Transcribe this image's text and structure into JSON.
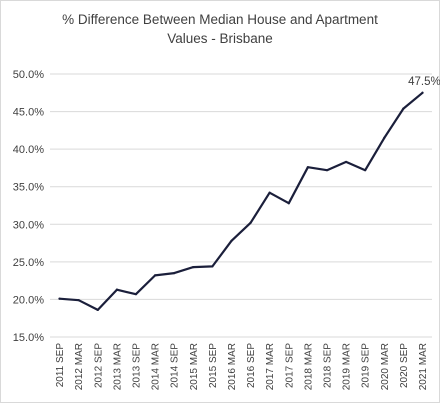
{
  "chart_data": {
    "type": "line",
    "title_line1": "% Difference Between Median House and Apartment",
    "title_line2": "Values - Brisbane",
    "categories": [
      "2011 SEP",
      "2012 MAR",
      "2012 SEP",
      "2013 MAR",
      "2013 SEP",
      "2014 MAR",
      "2014 SEP",
      "2015 MAR",
      "2015 SEP",
      "2016 MAR",
      "2016 SEP",
      "2017 MAR",
      "2017 SEP",
      "2018 MAR",
      "2018 SEP",
      "2019 MAR",
      "2019 SEP",
      "2020 MAR",
      "2020 SEP",
      "2021 MAR"
    ],
    "series": [
      {
        "values": [
          20.1,
          19.9,
          18.6,
          21.3,
          20.7,
          23.2,
          23.5,
          24.3,
          24.4,
          27.8,
          30.2,
          34.2,
          32.8,
          37.6,
          37.2,
          38.3,
          37.2,
          41.5,
          45.4,
          47.5
        ],
        "color": "#1b1f3b"
      }
    ],
    "y_ticks": [
      "15.0%",
      "20.0%",
      "25.0%",
      "30.0%",
      "35.0%",
      "40.0%",
      "45.0%",
      "50.0%"
    ],
    "ylim": [
      15,
      50
    ],
    "grid": "horizontal",
    "last_value_label": "47.5%",
    "gridline_color": "#d9d9d9"
  }
}
